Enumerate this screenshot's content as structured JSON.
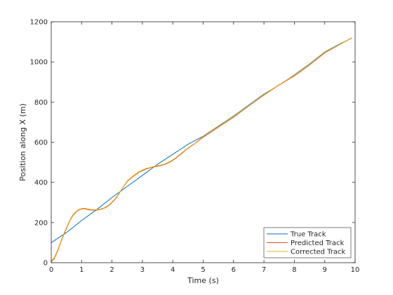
{
  "chart_data": {
    "type": "line",
    "title": "",
    "xlabel": "Time (s)",
    "ylabel": "Position along X (m)",
    "xlim": [
      0,
      10
    ],
    "ylim": [
      0,
      1200
    ],
    "xticks": [
      0,
      1,
      2,
      3,
      4,
      5,
      6,
      7,
      8,
      9,
      10
    ],
    "yticks": [
      0,
      200,
      400,
      600,
      800,
      1000,
      1200
    ],
    "grid": false,
    "legend_position": "bottom-right",
    "series": [
      {
        "name": "True Track",
        "color": "#0072bd",
        "x": [
          0,
          0.5,
          1,
          1.5,
          2,
          2.5,
          3,
          3.5,
          4,
          4.5,
          5,
          5.5,
          6,
          6.5,
          7,
          7.5,
          8,
          8.5,
          9,
          9.5,
          9.9
        ],
        "y": [
          100,
          150,
          210,
          265,
          325,
          380,
          435,
          490,
          540,
          590,
          630,
          680,
          730,
          785,
          840,
          885,
          935,
          990,
          1050,
          1090,
          1120
        ]
      },
      {
        "name": "Predicted Track",
        "color": "#d95319",
        "x": [
          0,
          0.1,
          0.2,
          0.3,
          0.4,
          0.5,
          0.6,
          0.7,
          0.8,
          0.9,
          1.0,
          1.1,
          1.2,
          1.3,
          1.5,
          1.7,
          1.9,
          2.1,
          2.3,
          2.5,
          2.7,
          2.9,
          3.1,
          3.3,
          3.5,
          3.7,
          3.9,
          4.1,
          4.3,
          4.5,
          4.7,
          5,
          5.5,
          6,
          6.5,
          7,
          7.5,
          8,
          8.5,
          9,
          9.3,
          9.6,
          9.9
        ],
        "y": [
          5,
          20,
          55,
          95,
          135,
          170,
          205,
          232,
          250,
          262,
          268,
          268,
          265,
          262,
          262,
          268,
          285,
          315,
          360,
          405,
          430,
          452,
          465,
          475,
          480,
          488,
          500,
          520,
          545,
          570,
          590,
          625,
          675,
          725,
          780,
          835,
          885,
          930,
          985,
          1045,
          1070,
          1095,
          1120
        ]
      },
      {
        "name": "Corrected Track",
        "color": "#edb120",
        "x": [
          0,
          0.1,
          0.2,
          0.3,
          0.4,
          0.5,
          0.6,
          0.7,
          0.8,
          0.9,
          1.0,
          1.1,
          1.2,
          1.3,
          1.5,
          1.7,
          1.9,
          2.1,
          2.3,
          2.5,
          2.7,
          2.9,
          3.1,
          3.3,
          3.5,
          3.7,
          3.9,
          4.1,
          4.3,
          4.5,
          4.7,
          5,
          5.5,
          6,
          6.5,
          7,
          7.5,
          8,
          8.5,
          9,
          9.3,
          9.6,
          9.9
        ],
        "y": [
          8,
          25,
          60,
          100,
          140,
          175,
          208,
          236,
          253,
          265,
          270,
          271,
          268,
          265,
          264,
          270,
          288,
          318,
          362,
          408,
          433,
          455,
          468,
          477,
          483,
          490,
          503,
          523,
          548,
          572,
          592,
          628,
          678,
          728,
          782,
          838,
          887,
          933,
          988,
          1048,
          1072,
          1096,
          1121
        ]
      }
    ]
  }
}
